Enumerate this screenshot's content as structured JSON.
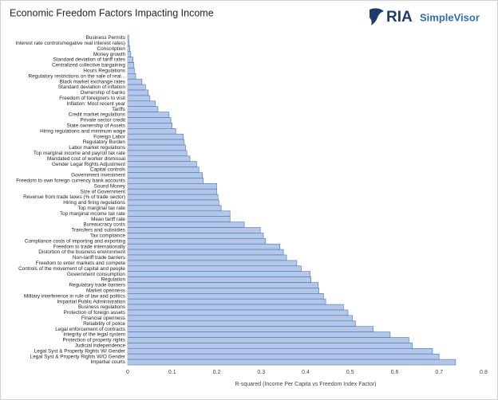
{
  "logo": {
    "mark": "RIA",
    "name": "SimpleVisor"
  },
  "chart_data": {
    "type": "bar",
    "orientation": "horizontal",
    "title": "Economic Freedom Factors Impacting Income",
    "x_label": "R-squared (Income Per Capita vs Freedom Index Factor)",
    "categories": [
      "Business Permits",
      "Interest rate controls/negative real interest rates)",
      "Conscription",
      "Money growth",
      "Standard deviation of tariff rates",
      "Centralized collective bargaining",
      "Hours Regulations",
      "Regulatory restrictions on the sale of real...",
      "Black market exchange rates",
      "Standard deviation of inflation",
      "Ownership of banks",
      "Freedom of foreigners to visit",
      "Inflation: Most recent year",
      "Tariffs",
      "Credit market regulations",
      "Private sector credit",
      "State ownership of Assets",
      "Hiring regulations and minimum wage",
      "Foreign Labor",
      "Regulatory Burden",
      "Labor market regulations",
      "Top marginal income and payroll tax rate",
      "Mandated cost of worker dismissal",
      "Gender Legal Rights Adjustment",
      "Capital controls",
      "Government investment",
      "Freedom to own foreign currency bank accounts",
      "Sound Money",
      "Size of Government",
      "Revenue from trade taxes (% of trade sector)",
      "Hiring and firing regulations",
      "Top marginal tax rate",
      "Top marginal income tax rate",
      "Mean tariff rate",
      "Bureaucracy costs",
      "Transfers and subsidies",
      "Tax compliance",
      "Compliance costs of importing and exporting",
      "Freedom to trade internationally",
      "Distortion of the business environment",
      "Non-tariff trade barriers",
      "Freedom to enter markets and compete",
      "Controls of the movement of capital and people",
      "Government consumption",
      "Regulation",
      "Regulatory trade barriers",
      "Market openness",
      "Military interference in rule of law and politics",
      "Impartial Public Administration",
      "Business regulations",
      "Protection of foreign assets",
      "Financial openness",
      "Reliability of police",
      "Legal enforcement of contracts",
      "Integrity of the legal system",
      "Protection of property rights",
      "Judicial independence",
      "Legal Syst & Property Rights W/ Gender",
      "Legal Syst & Property Rights W/O Gender",
      "Impartial courts"
    ],
    "values": [
      0.002,
      0.003,
      0.005,
      0.007,
      0.012,
      0.014,
      0.015,
      0.018,
      0.032,
      0.04,
      0.046,
      0.05,
      0.062,
      0.068,
      0.093,
      0.097,
      0.1,
      0.108,
      0.125,
      0.127,
      0.13,
      0.133,
      0.14,
      0.155,
      0.16,
      0.168,
      0.17,
      0.2,
      0.2,
      0.203,
      0.205,
      0.21,
      0.23,
      0.23,
      0.262,
      0.298,
      0.305,
      0.31,
      0.342,
      0.35,
      0.357,
      0.38,
      0.39,
      0.41,
      0.412,
      0.428,
      0.43,
      0.44,
      0.445,
      0.485,
      0.495,
      0.505,
      0.512,
      0.552,
      0.59,
      0.632,
      0.64,
      0.685,
      0.7,
      0.737
    ],
    "color": "#b4c7e7",
    "edge_color": "#4472c4",
    "xlim": [
      0,
      0.8
    ],
    "xticks": [
      0,
      0.1,
      0.2,
      0.3,
      0.4,
      0.5,
      0.6,
      0.7,
      0.8
    ],
    "grid": false
  }
}
